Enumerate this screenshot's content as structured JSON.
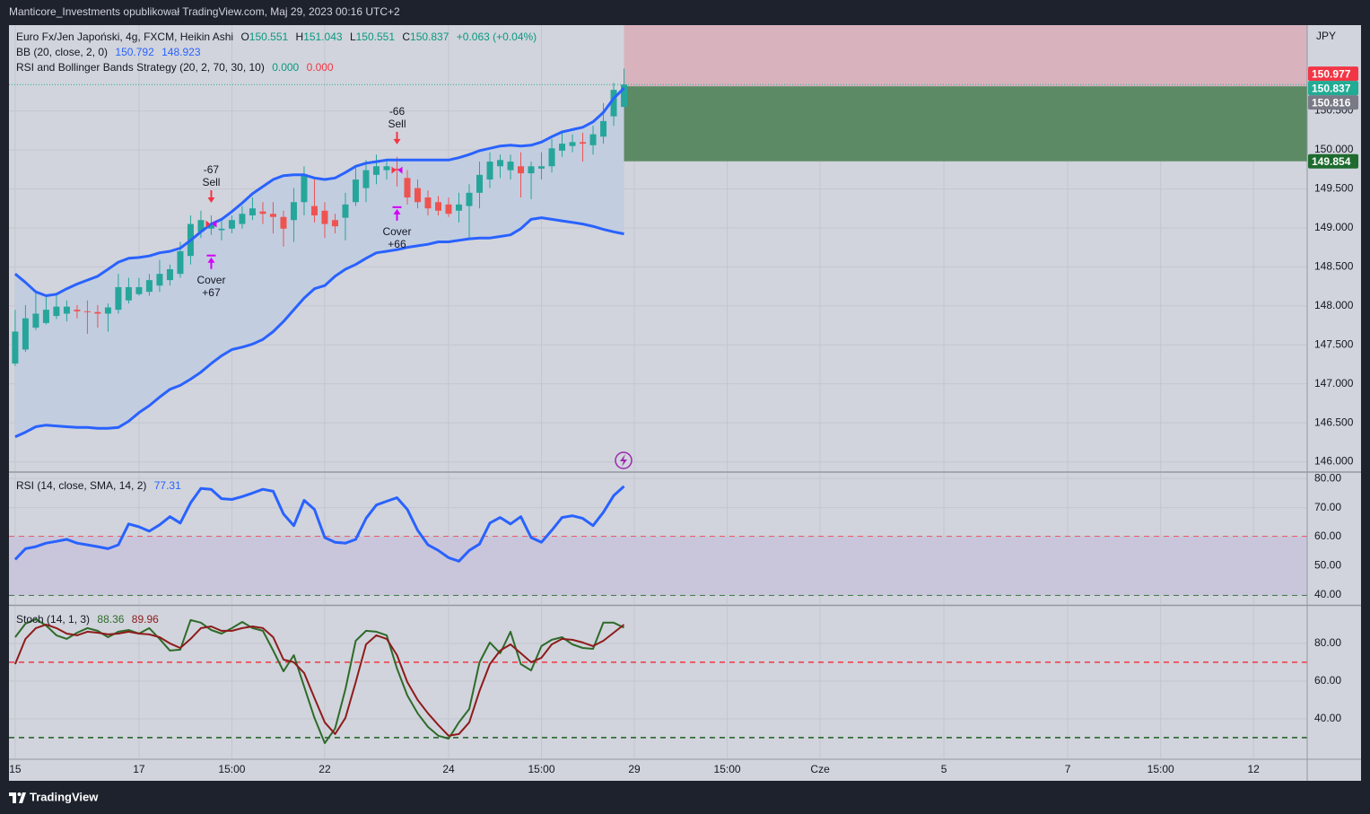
{
  "header": {
    "text": "Manticore_Investments opublikował TradingView.com, Maj 29, 2023 00:16 UTC+2"
  },
  "footer": {
    "brand": "TradingView"
  },
  "chart_data": [
    {
      "type": "candlestick",
      "symbol": "Euro Fx/Jen Japoński, 4g, FXCM, Heikin Ashi",
      "ohlc_labels": [
        "O",
        "H",
        "L",
        "C"
      ],
      "change": "+0.063 (+0.04%)",
      "currency": "JPY",
      "up_color": "#26a69a",
      "down_color": "#ef5350",
      "open": [
        147.26,
        147.44,
        147.72,
        147.78,
        147.87,
        147.9,
        147.95,
        147.93,
        147.92,
        147.9,
        147.95,
        148.07,
        148.15,
        148.18,
        148.26,
        148.33,
        148.41,
        148.64,
        148.95,
        148.99,
        148.97,
        148.99,
        149.05,
        149.16,
        149.21,
        149.18,
        149.14,
        149.1,
        149.33,
        149.28,
        149.22,
        149.1,
        149.13,
        149.33,
        149.51,
        149.68,
        149.74,
        149.76,
        149.64,
        149.51,
        149.39,
        149.33,
        149.3,
        149.22,
        149.28,
        149.45,
        149.62,
        149.79,
        149.74,
        149.79,
        149.7,
        149.76,
        149.79,
        149.99,
        150.05,
        150.1,
        150.06,
        150.17,
        150.43,
        150.551
      ],
      "high": [
        147.95,
        148.01,
        148.18,
        148.13,
        148.15,
        148.07,
        148.01,
        148.07,
        148.01,
        148.03,
        148.41,
        148.36,
        148.36,
        148.41,
        148.59,
        148.53,
        148.82,
        149.16,
        149.22,
        149.16,
        149.1,
        149.16,
        149.28,
        149.39,
        149.33,
        149.33,
        149.22,
        149.51,
        149.79,
        149.62,
        149.33,
        149.18,
        149.45,
        149.79,
        149.87,
        149.94,
        149.87,
        149.91,
        149.74,
        149.62,
        149.48,
        149.41,
        149.39,
        149.45,
        149.56,
        149.85,
        149.97,
        149.94,
        149.94,
        149.97,
        149.85,
        149.97,
        150.14,
        150.25,
        150.2,
        150.22,
        150.31,
        150.6,
        150.86,
        151.043
      ],
      "low": [
        147.23,
        147.41,
        147.69,
        147.76,
        147.83,
        147.8,
        147.84,
        147.64,
        147.72,
        147.67,
        147.9,
        148.03,
        148.13,
        148.13,
        148.18,
        148.26,
        148.36,
        148.53,
        148.87,
        148.91,
        148.84,
        148.93,
        148.99,
        149.1,
        149.05,
        148.93,
        148.76,
        148.82,
        149.16,
        149.07,
        148.87,
        148.93,
        148.84,
        149.28,
        149.33,
        149.56,
        149.62,
        149.53,
        149.3,
        149.25,
        149.16,
        149.16,
        149.14,
        149.07,
        148.87,
        149.25,
        149.51,
        149.64,
        149.62,
        149.39,
        149.37,
        149.62,
        149.71,
        149.91,
        149.97,
        149.85,
        149.94,
        150.08,
        150.31,
        150.551
      ],
      "close": [
        147.67,
        147.84,
        147.9,
        147.95,
        147.99,
        147.99,
        147.93,
        147.92,
        147.9,
        147.98,
        148.24,
        148.24,
        148.24,
        148.33,
        148.41,
        148.47,
        148.7,
        149.05,
        149.1,
        149.05,
        148.99,
        149.1,
        149.18,
        149.25,
        149.18,
        149.14,
        148.99,
        149.33,
        149.68,
        149.16,
        149.05,
        149.02,
        149.3,
        149.62,
        149.74,
        149.79,
        149.79,
        149.74,
        149.39,
        149.33,
        149.25,
        149.22,
        149.18,
        149.3,
        149.45,
        149.68,
        149.85,
        149.87,
        149.85,
        149.7,
        149.79,
        149.79,
        150.02,
        150.08,
        150.1,
        150.08,
        150.2,
        150.37,
        150.77,
        150.837
      ],
      "bb": {
        "name": "BB (20, close, 2, 0)",
        "color": "#2962ff",
        "fill": "#c2cde0",
        "upper": [
          148.41,
          148.3,
          148.18,
          148.13,
          148.15,
          148.22,
          148.28,
          148.33,
          148.38,
          148.47,
          148.56,
          148.61,
          148.62,
          148.64,
          148.68,
          148.7,
          148.74,
          148.84,
          148.95,
          149.05,
          149.11,
          149.21,
          149.32,
          149.44,
          149.53,
          149.62,
          149.67,
          149.68,
          149.68,
          149.64,
          149.62,
          149.64,
          149.71,
          149.79,
          149.83,
          149.85,
          149.87,
          149.87,
          149.87,
          149.87,
          149.87,
          149.87,
          149.87,
          149.9,
          149.94,
          149.99,
          150.02,
          150.05,
          150.06,
          150.05,
          150.06,
          150.1,
          150.17,
          150.23,
          150.26,
          150.29,
          150.36,
          150.48,
          150.66,
          150.792
        ],
        "lower": [
          146.32,
          146.38,
          146.45,
          146.47,
          146.46,
          146.45,
          146.44,
          146.44,
          146.43,
          146.43,
          146.44,
          146.52,
          146.63,
          146.72,
          146.83,
          146.93,
          146.98,
          147.06,
          147.15,
          147.26,
          147.36,
          147.44,
          147.47,
          147.51,
          147.57,
          147.67,
          147.8,
          147.95,
          148.1,
          148.22,
          148.26,
          148.38,
          148.47,
          148.53,
          148.61,
          148.68,
          148.7,
          148.72,
          148.75,
          148.77,
          148.79,
          148.82,
          148.82,
          148.84,
          148.86,
          148.87,
          148.87,
          148.89,
          148.91,
          148.99,
          149.11,
          149.13,
          149.11,
          149.09,
          149.07,
          149.05,
          149.02,
          148.98,
          148.95,
          148.923
        ]
      },
      "strategy": {
        "name": "RSI and Bollinger Bands Strategy (20, 2, 70, 30, 10)",
        "values": [
          {
            "value": 0,
            "label": "0.000"
          },
          {
            "value": 0,
            "label": "0.000"
          }
        ],
        "signals": [
          {
            "index": 19,
            "arrow": "down",
            "text": "Sell",
            "profit": "-67",
            "color": "#f23645"
          },
          {
            "index": 19,
            "arrow": "up",
            "text": "Cover",
            "profit": "+67",
            "color": "#d500f9"
          },
          {
            "index": 37,
            "arrow": "down",
            "text": "Sell",
            "profit": "-66",
            "color": "#f23645"
          },
          {
            "index": 37,
            "arrow": "up",
            "text": "Cover",
            "profit": "+66",
            "color": "#d500f9"
          }
        ]
      },
      "position": {
        "start_index": 59,
        "entry": 150.816,
        "target": 149.854,
        "stop_color": "#d8b3bd",
        "target_color": "#5c8a64"
      },
      "price_labels": [
        {
          "value": 150.977,
          "color": "#f23645"
        },
        {
          "value": 150.837,
          "color": "#22ab94"
        },
        {
          "value": 150.816,
          "color": "#787b86"
        },
        {
          "value": 149.854,
          "color": "#1e6b2e"
        }
      ],
      "xlim": [
        -0.6,
        125.2
      ],
      "xticks": [
        {
          "value": 0,
          "label": "15"
        },
        {
          "value": 12,
          "label": "17"
        },
        {
          "value": 21,
          "label": "15:00"
        },
        {
          "value": 30,
          "label": "22"
        },
        {
          "value": 42,
          "label": "24"
        },
        {
          "value": 51,
          "label": "15:00"
        },
        {
          "value": 60,
          "label": "29"
        },
        {
          "value": 69,
          "label": "15:00"
        },
        {
          "value": 78,
          "label": "Cze"
        },
        {
          "value": 90,
          "label": "5"
        },
        {
          "value": 102,
          "label": "7"
        },
        {
          "value": 111,
          "label": "15:00"
        },
        {
          "value": 120,
          "label": "12"
        }
      ],
      "ylim": [
        145.88,
        151.6
      ],
      "yticks": [
        {
          "value": 146,
          "label": "146.000"
        },
        {
          "value": 146.5,
          "label": "146.500"
        },
        {
          "value": 147,
          "label": "147.000"
        },
        {
          "value": 147.5,
          "label": "147.500"
        },
        {
          "value": 148,
          "label": "148.000"
        },
        {
          "value": 148.5,
          "label": "148.500"
        },
        {
          "value": 149,
          "label": "149.000"
        },
        {
          "value": 149.5,
          "label": "149.500"
        },
        {
          "value": 150,
          "label": "150.000"
        },
        {
          "value": 150.5,
          "label": "150.500"
        }
      ],
      "grid": true
    },
    {
      "type": "line",
      "title": "RSI (14, close, SMA, 14, 2)",
      "color": "#2962ff",
      "values": [
        52.2,
        55.9,
        56.6,
        57.8,
        58.4,
        59.1,
        57.8,
        57.2,
        56.6,
        55.9,
        57.2,
        64.4,
        63.4,
        61.9,
        64.1,
        66.9,
        64.7,
        71.6,
        76.6,
        76.3,
        73.1,
        72.8,
        73.8,
        75,
        76.3,
        75.6,
        67.8,
        63.8,
        72.5,
        69.4,
        59.7,
        58.1,
        57.8,
        59.1,
        66.3,
        70.9,
        72.2,
        73.4,
        69.4,
        62.2,
        57.2,
        55.3,
        52.8,
        51.6,
        55.3,
        57.5,
        64.7,
        66.6,
        64.4,
        66.9,
        59.7,
        58.1,
        62.2,
        66.6,
        67.2,
        66.3,
        63.8,
        68.4,
        74.1,
        77.31
      ],
      "bands": [
        {
          "value": 60,
          "color": "#f23645"
        },
        {
          "value": 40,
          "color": "#1b5e20"
        }
      ],
      "band_fill": "#c9c6dc",
      "ylim": [
        36.9,
        81.9
      ],
      "yticks": [
        {
          "value": 40,
          "label": "40.00"
        },
        {
          "value": 50,
          "label": "50.00"
        },
        {
          "value": 60,
          "label": "60.00"
        },
        {
          "value": 70,
          "label": "70.00"
        },
        {
          "value": 80,
          "label": "80.00"
        }
      ],
      "grid": true
    },
    {
      "type": "line",
      "title": "Stoch (14, 1, 3)",
      "series": [
        {
          "color": "#2e6b2a",
          "values": [
            83.3,
            90.5,
            92.9,
            89.5,
            84.3,
            82.4,
            85.7,
            88.1,
            86.7,
            83.3,
            86.2,
            87.1,
            85.2,
            88.1,
            82.4,
            76.2,
            76.7,
            92.4,
            91,
            87.1,
            85.2,
            88.1,
            91.4,
            88.1,
            86.7,
            76.2,
            65.2,
            73.8,
            57.1,
            40.5,
            27.1,
            34.8,
            55.7,
            81.4,
            86.7,
            86.2,
            84.3,
            66.7,
            52.4,
            42.9,
            35.7,
            31,
            29.5,
            38.1,
            45.2,
            70,
            80.5,
            74.8,
            86.2,
            69,
            65.7,
            78.6,
            81.9,
            83.3,
            79.5,
            77.6,
            77.1,
            91,
            91,
            88.36
          ]
        },
        {
          "color": "#8e1b1b",
          "values": [
            69,
            82.4,
            88.1,
            90,
            88.1,
            85.2,
            84.3,
            86.2,
            85.7,
            84.8,
            85.2,
            86.2,
            85.2,
            84.8,
            83.3,
            80,
            77.6,
            82.4,
            88.1,
            89,
            86.7,
            86.7,
            88.1,
            89,
            88.1,
            83.3,
            71.4,
            70,
            64.3,
            51,
            38.1,
            31.9,
            40.5,
            59.5,
            79.5,
            84.3,
            82.4,
            73.8,
            59.5,
            50,
            42.9,
            36.7,
            31,
            31.9,
            38.1,
            54.8,
            69,
            76.2,
            79.5,
            74.8,
            70,
            72.4,
            79.5,
            82.4,
            81.9,
            80.5,
            78.6,
            81.4,
            85.7,
            89.96
          ]
        }
      ],
      "bands": [
        {
          "value": 70,
          "color": "#f23645"
        },
        {
          "value": 30,
          "color": "#1b5e20"
        }
      ],
      "ylim": [
        19,
        99.5
      ],
      "yticks": [
        {
          "value": 40,
          "label": "40.00"
        },
        {
          "value": 60,
          "label": "60.00"
        },
        {
          "value": 80,
          "label": "80.00"
        }
      ],
      "grid": true
    }
  ]
}
